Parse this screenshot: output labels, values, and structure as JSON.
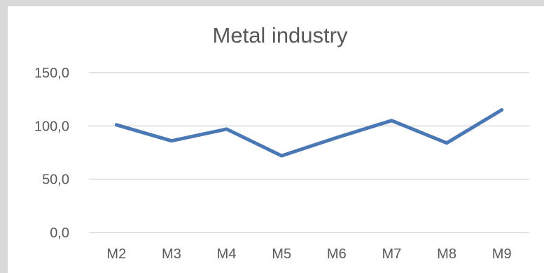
{
  "chart_data": {
    "type": "line",
    "title": "Metal industry",
    "xlabel": "",
    "ylabel": "",
    "categories": [
      "M2",
      "M3",
      "M4",
      "M5",
      "M6",
      "M7",
      "M8",
      "M9"
    ],
    "series": [
      {
        "values": [
          101.0,
          86.0,
          97.0,
          72.0,
          89.0,
          105.0,
          84.0,
          115.0
        ],
        "color": "#4a78b5"
      }
    ],
    "ylim": [
      0,
      150
    ],
    "yticks": [
      0,
      50,
      100,
      150
    ],
    "ytick_labels": [
      "0,0",
      "50,0",
      "100,0",
      "150,0"
    ],
    "grid": true,
    "legend": "none",
    "gridline_color": "#d9d9d9",
    "text_color": "#595959"
  }
}
